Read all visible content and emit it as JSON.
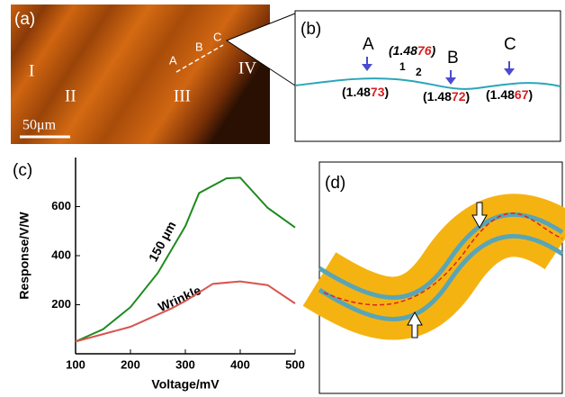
{
  "panels": {
    "a": {
      "label": "(a)",
      "regions": [
        "I",
        "II",
        "III",
        "IV"
      ],
      "points": [
        "A",
        "B",
        "C"
      ],
      "scale": "50μm"
    },
    "b": {
      "label": "(b)",
      "points": [
        "A",
        "B",
        "C"
      ],
      "indices": [
        {
          "prefix": "(1.48",
          "highlight": "73",
          "suffix": ")"
        },
        {
          "prefix": "(1.48",
          "highlight": "72",
          "suffix": ")"
        },
        {
          "prefix": "(1.48",
          "highlight": "67",
          "suffix": ")"
        },
        {
          "prefix": "(1.48",
          "highlight": "76",
          "suffix": ")"
        }
      ],
      "marks": [
        "1",
        "2"
      ]
    },
    "d": {
      "label": "(d)"
    }
  },
  "chart_data": {
    "type": "line",
    "label": "(c)",
    "x_label": "Voltage/mV",
    "y_label": "Response/V/W",
    "xlim": [
      100,
      500
    ],
    "xticks": [
      100,
      200,
      300,
      400,
      500
    ],
    "ylim": [
      0,
      800
    ],
    "yticks": [
      200,
      400,
      600
    ],
    "series": [
      {
        "name": "150 μm",
        "color": "#1e8a1e",
        "x": [
          100,
          150,
          200,
          250,
          300,
          325,
          375,
          400,
          450,
          500
        ],
        "values": [
          50,
          100,
          190,
          330,
          520,
          655,
          715,
          718,
          595,
          515
        ]
      },
      {
        "name": "Wrinkle",
        "color": "#d9534f",
        "x": [
          100,
          200,
          275,
          300,
          350,
          400,
          450,
          500
        ],
        "values": [
          50,
          110,
          185,
          215,
          285,
          295,
          280,
          205
        ]
      }
    ]
  }
}
